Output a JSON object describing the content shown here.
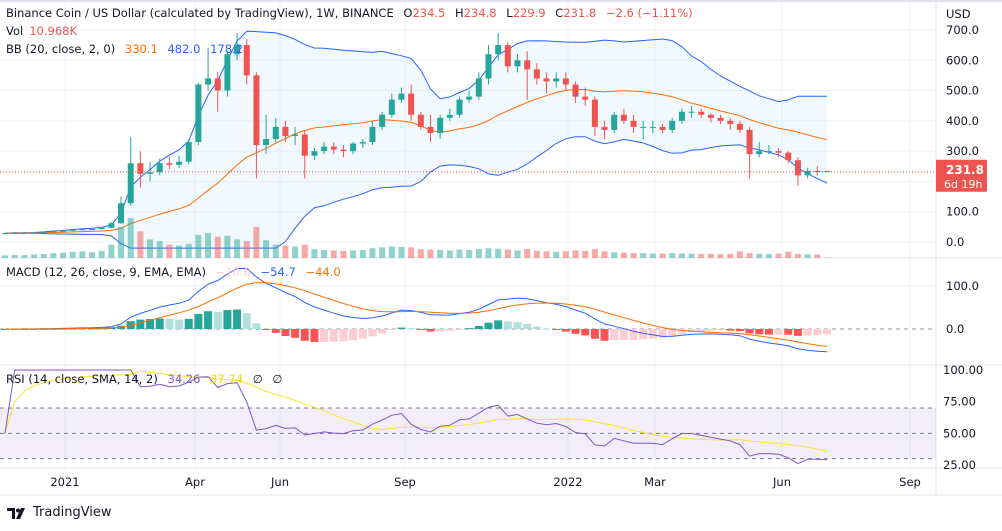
{
  "header": {
    "symbol_title": "Binance Coin / US Dollar (calculated by TradingView), 1W, BINANCE",
    "open_label": "O",
    "open": "234.5",
    "high_label": "H",
    "high": "234.8",
    "low_label": "L",
    "low": "229.9",
    "close_label": "C",
    "close": "231.8",
    "change": "−2.6 (−1.11%)",
    "vol_label": "Vol",
    "vol": "10.968K",
    "bb_label": "BB (20, close, 2, 0)",
    "bb_basis": "330.1",
    "bb_upper": "482.0",
    "bb_lower": "178.2"
  },
  "macd_legend": {
    "label": "MACD (12, 26, close, 9, EMA, EMA)",
    "hist": "−10.6",
    "macd": "−54.7",
    "signal": "−44.0"
  },
  "rsi_legend": {
    "label": "RSI (14, close, SMA, 14, 2)",
    "rsi": "34.26",
    "rsi_ma": "37.74",
    "v3": "∅",
    "v4": "∅"
  },
  "price_axis": {
    "currency": "USD",
    "ticks": [
      "700.0",
      "600.0",
      "500.0",
      "400.0",
      "300.0",
      "100.0",
      "0.0"
    ]
  },
  "last_price_tag": {
    "price": "231.8",
    "countdown": "6d 19h"
  },
  "macd_axis": {
    "ticks": [
      "100.0",
      "0.0"
    ]
  },
  "rsi_axis": {
    "ticks": [
      "100.00",
      "75.00",
      "50.00",
      "25.00"
    ]
  },
  "time_axis": {
    "labels": [
      "2021",
      "Apr",
      "Jun",
      "Sep",
      "2022",
      "Mar",
      "Jun",
      "Sep"
    ]
  },
  "footer": {
    "brand": "TradingView"
  },
  "colors": {
    "up": "#26a69a",
    "down": "#ef5350",
    "bb_basis": "#ff6d00",
    "bb_band": "#2962ff",
    "macd": "#2962ff",
    "signal": "#ff6d00",
    "rsi": "#7e57c2",
    "rsi_ma": "#f5e52a"
  },
  "chart_data": {
    "type": "candlestick",
    "interval": "1W",
    "first_week": "2020-11-16",
    "last_week": "2022-07-04",
    "ohlc": [
      [
        28,
        31,
        27,
        29
      ],
      [
        29,
        33,
        28,
        30
      ],
      [
        30,
        32,
        28,
        30
      ],
      [
        30,
        33,
        29,
        31
      ],
      [
        31,
        34,
        30,
        33
      ],
      [
        33,
        38,
        32,
        36
      ],
      [
        36,
        39,
        34,
        37
      ],
      [
        37,
        44,
        36,
        41
      ],
      [
        41,
        45,
        38,
        42
      ],
      [
        42,
        46,
        40,
        43
      ],
      [
        43,
        49,
        41,
        47
      ],
      [
        47,
        66,
        45,
        62
      ],
      [
        62,
        150,
        60,
        128
      ],
      [
        128,
        348,
        120,
        260
      ],
      [
        260,
        300,
        180,
        225
      ],
      [
        225,
        265,
        200,
        230
      ],
      [
        230,
        275,
        220,
        260
      ],
      [
        260,
        280,
        240,
        255
      ],
      [
        255,
        285,
        245,
        265
      ],
      [
        265,
        340,
        258,
        330
      ],
      [
        330,
        525,
        320,
        520
      ],
      [
        520,
        640,
        500,
        540
      ],
      [
        540,
        560,
        430,
        500
      ],
      [
        500,
        630,
        480,
        620
      ],
      [
        620,
        690,
        600,
        650
      ],
      [
        650,
        670,
        520,
        550
      ],
      [
        550,
        560,
        210,
        320
      ],
      [
        320,
        420,
        290,
        340
      ],
      [
        340,
        410,
        330,
        380
      ],
      [
        380,
        400,
        330,
        350
      ],
      [
        350,
        380,
        320,
        355
      ],
      [
        355,
        370,
        210,
        285
      ],
      [
        285,
        310,
        270,
        300
      ],
      [
        300,
        330,
        290,
        315
      ],
      [
        315,
        330,
        290,
        305
      ],
      [
        305,
        320,
        280,
        300
      ],
      [
        300,
        330,
        290,
        325
      ],
      [
        325,
        340,
        310,
        330
      ],
      [
        330,
        400,
        320,
        380
      ],
      [
        380,
        430,
        370,
        420
      ],
      [
        420,
        490,
        410,
        470
      ],
      [
        470,
        510,
        460,
        490
      ],
      [
        490,
        520,
        400,
        420
      ],
      [
        420,
        430,
        370,
        380
      ],
      [
        380,
        420,
        330,
        360
      ],
      [
        360,
        420,
        340,
        410
      ],
      [
        410,
        440,
        400,
        420
      ],
      [
        420,
        480,
        410,
        470
      ],
      [
        470,
        500,
        460,
        480
      ],
      [
        480,
        560,
        470,
        540
      ],
      [
        540,
        650,
        520,
        620
      ],
      [
        620,
        690,
        600,
        650
      ],
      [
        650,
        660,
        560,
        580
      ],
      [
        580,
        620,
        560,
        600
      ],
      [
        600,
        630,
        470,
        570
      ],
      [
        570,
        590,
        520,
        540
      ],
      [
        540,
        560,
        490,
        530
      ],
      [
        530,
        560,
        510,
        540
      ],
      [
        540,
        560,
        500,
        520
      ],
      [
        520,
        530,
        460,
        480
      ],
      [
        480,
        510,
        450,
        470
      ],
      [
        470,
        480,
        350,
        380
      ],
      [
        380,
        400,
        340,
        370
      ],
      [
        370,
        430,
        360,
        420
      ],
      [
        420,
        440,
        390,
        400
      ],
      [
        400,
        420,
        360,
        380
      ],
      [
        380,
        400,
        340,
        380
      ],
      [
        380,
        400,
        360,
        380
      ],
      [
        380,
        390,
        360,
        370
      ],
      [
        370,
        410,
        360,
        400
      ],
      [
        400,
        440,
        390,
        430
      ],
      [
        430,
        450,
        410,
        430
      ],
      [
        430,
        440,
        410,
        420
      ],
      [
        420,
        425,
        395,
        410
      ],
      [
        410,
        420,
        390,
        400
      ],
      [
        400,
        410,
        370,
        390
      ],
      [
        390,
        400,
        360,
        370
      ],
      [
        370,
        380,
        210,
        290
      ],
      [
        290,
        330,
        280,
        300
      ],
      [
        300,
        320,
        290,
        300
      ],
      [
        300,
        310,
        280,
        295
      ],
      [
        295,
        300,
        260,
        270
      ],
      [
        270,
        280,
        185,
        220
      ],
      [
        220,
        245,
        210,
        235
      ],
      [
        235,
        250,
        220,
        234.5
      ],
      [
        234.5,
        234.8,
        229.9,
        231.8
      ]
    ],
    "volume_k": [
      60,
      70,
      65,
      80,
      90,
      110,
      120,
      140,
      150,
      130,
      160,
      300,
      700,
      900,
      600,
      420,
      380,
      300,
      280,
      320,
      520,
      560,
      480,
      500,
      420,
      380,
      700,
      400,
      300,
      280,
      260,
      300,
      200,
      180,
      170,
      160,
      170,
      180,
      220,
      240,
      260,
      250,
      240,
      200,
      190,
      180,
      170,
      190,
      180,
      200,
      220,
      210,
      190,
      170,
      200,
      160,
      150,
      140,
      150,
      170,
      160,
      200,
      150,
      130,
      120,
      110,
      110,
      100,
      100,
      110,
      100,
      95,
      90,
      90,
      85,
      90,
      150,
      110,
      95,
      90,
      100,
      140,
      90,
      85,
      80,
      10.968
    ],
    "price_ylim": [
      0,
      700
    ],
    "macd_ylim_ticks": [
      0,
      100
    ],
    "rsi_ylim": [
      25,
      100
    ],
    "rsi_bands": [
      30,
      50,
      70
    ]
  }
}
